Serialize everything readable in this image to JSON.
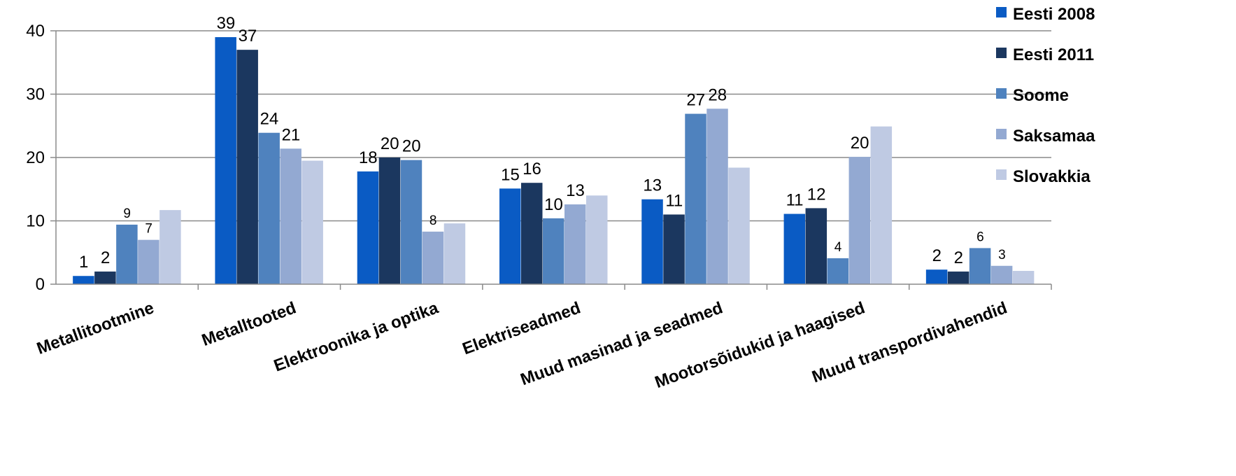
{
  "chart_data": {
    "type": "bar",
    "title": "",
    "xlabel": "",
    "ylabel": "",
    "ylim": [
      0,
      40
    ],
    "yticks": [
      0,
      10,
      20,
      30,
      40
    ],
    "grid": true,
    "legend_position": "right",
    "categories": [
      "Metallitootmine",
      "Metalltooted",
      "Elektroonika ja optika",
      "Elektriseadmed",
      "Muud masinad ja seadmed",
      "Mootorsõidukid ja haagised",
      "Muud transpordivahendid"
    ],
    "series": [
      {
        "name": "Eesti 2008",
        "color": "#0a5bc4",
        "values": [
          1.3,
          39,
          17.8,
          15.1,
          13.4,
          11.1,
          2.3
        ],
        "labels": [
          "1",
          "39",
          "18",
          "15",
          "13",
          "11",
          "2"
        ]
      },
      {
        "name": "Eesti 2011",
        "color": "#1b375f",
        "values": [
          2.0,
          37.0,
          20.0,
          16.0,
          11.0,
          12.0,
          2.0
        ],
        "labels": [
          "2",
          "37",
          "20",
          "16",
          "11",
          "12",
          "2"
        ]
      },
      {
        "name": "Soome",
        "color": "#4f82be",
        "values": [
          9.4,
          23.9,
          19.6,
          10.4,
          26.9,
          4.1,
          5.7
        ],
        "labels": [
          "9",
          "24",
          "20",
          "10",
          "27",
          "4",
          "6"
        ]
      },
      {
        "name": "Saksamaa",
        "color": "#93a9d2",
        "values": [
          7.0,
          21.4,
          8.3,
          12.6,
          27.7,
          20.1,
          2.9
        ],
        "labels": [
          "7",
          "21",
          "8",
          "13",
          "28",
          "20",
          "3"
        ]
      },
      {
        "name": "Slovakkia",
        "color": "#bfcae3",
        "values": [
          11.7,
          19.5,
          9.6,
          14.0,
          18.4,
          24.9,
          2.1
        ],
        "labels": [
          null,
          null,
          null,
          null,
          null,
          null,
          null
        ]
      }
    ]
  }
}
